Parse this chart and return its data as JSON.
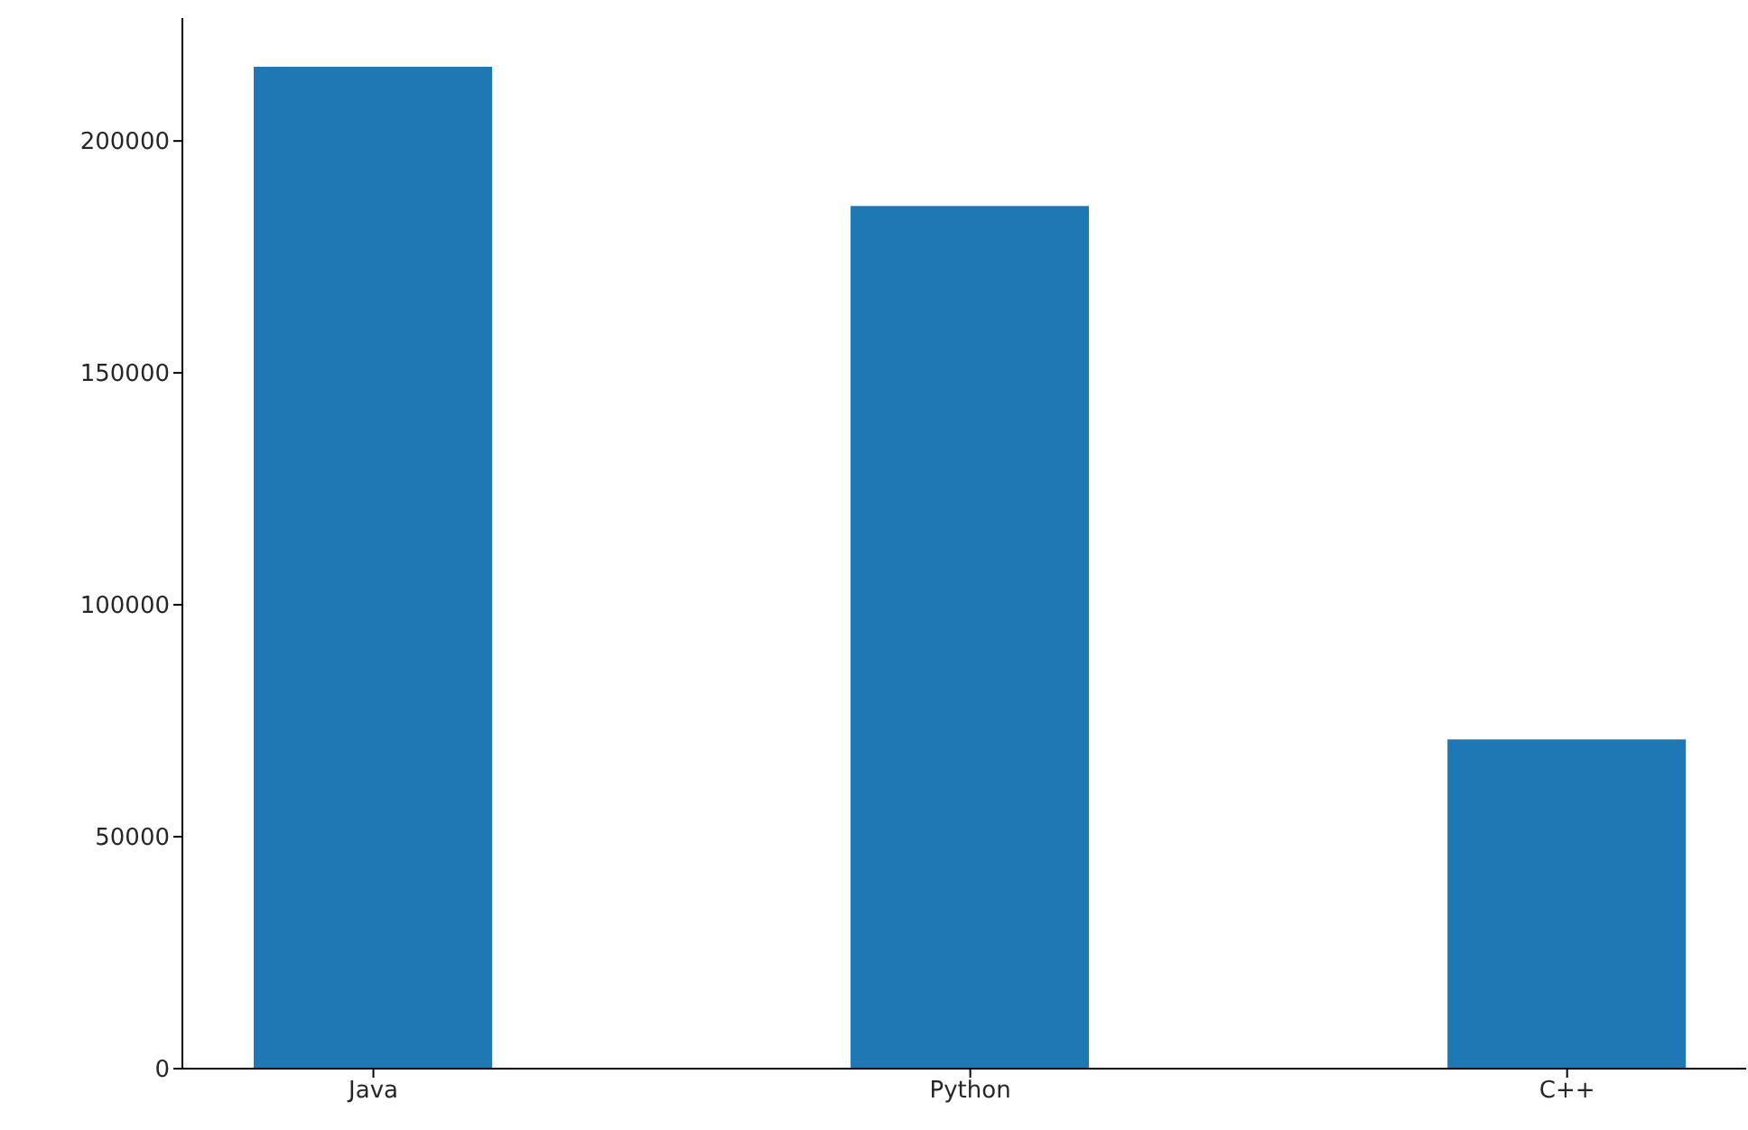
{
  "chart_data": {
    "type": "bar",
    "categories": [
      "Java",
      "Python",
      "C++"
    ],
    "values": [
      216000,
      186000,
      71000
    ],
    "color": "#1f77b4",
    "ylim": [
      0,
      226500
    ],
    "yticks": [
      0,
      50000,
      100000,
      150000,
      200000
    ],
    "grid": false
  }
}
